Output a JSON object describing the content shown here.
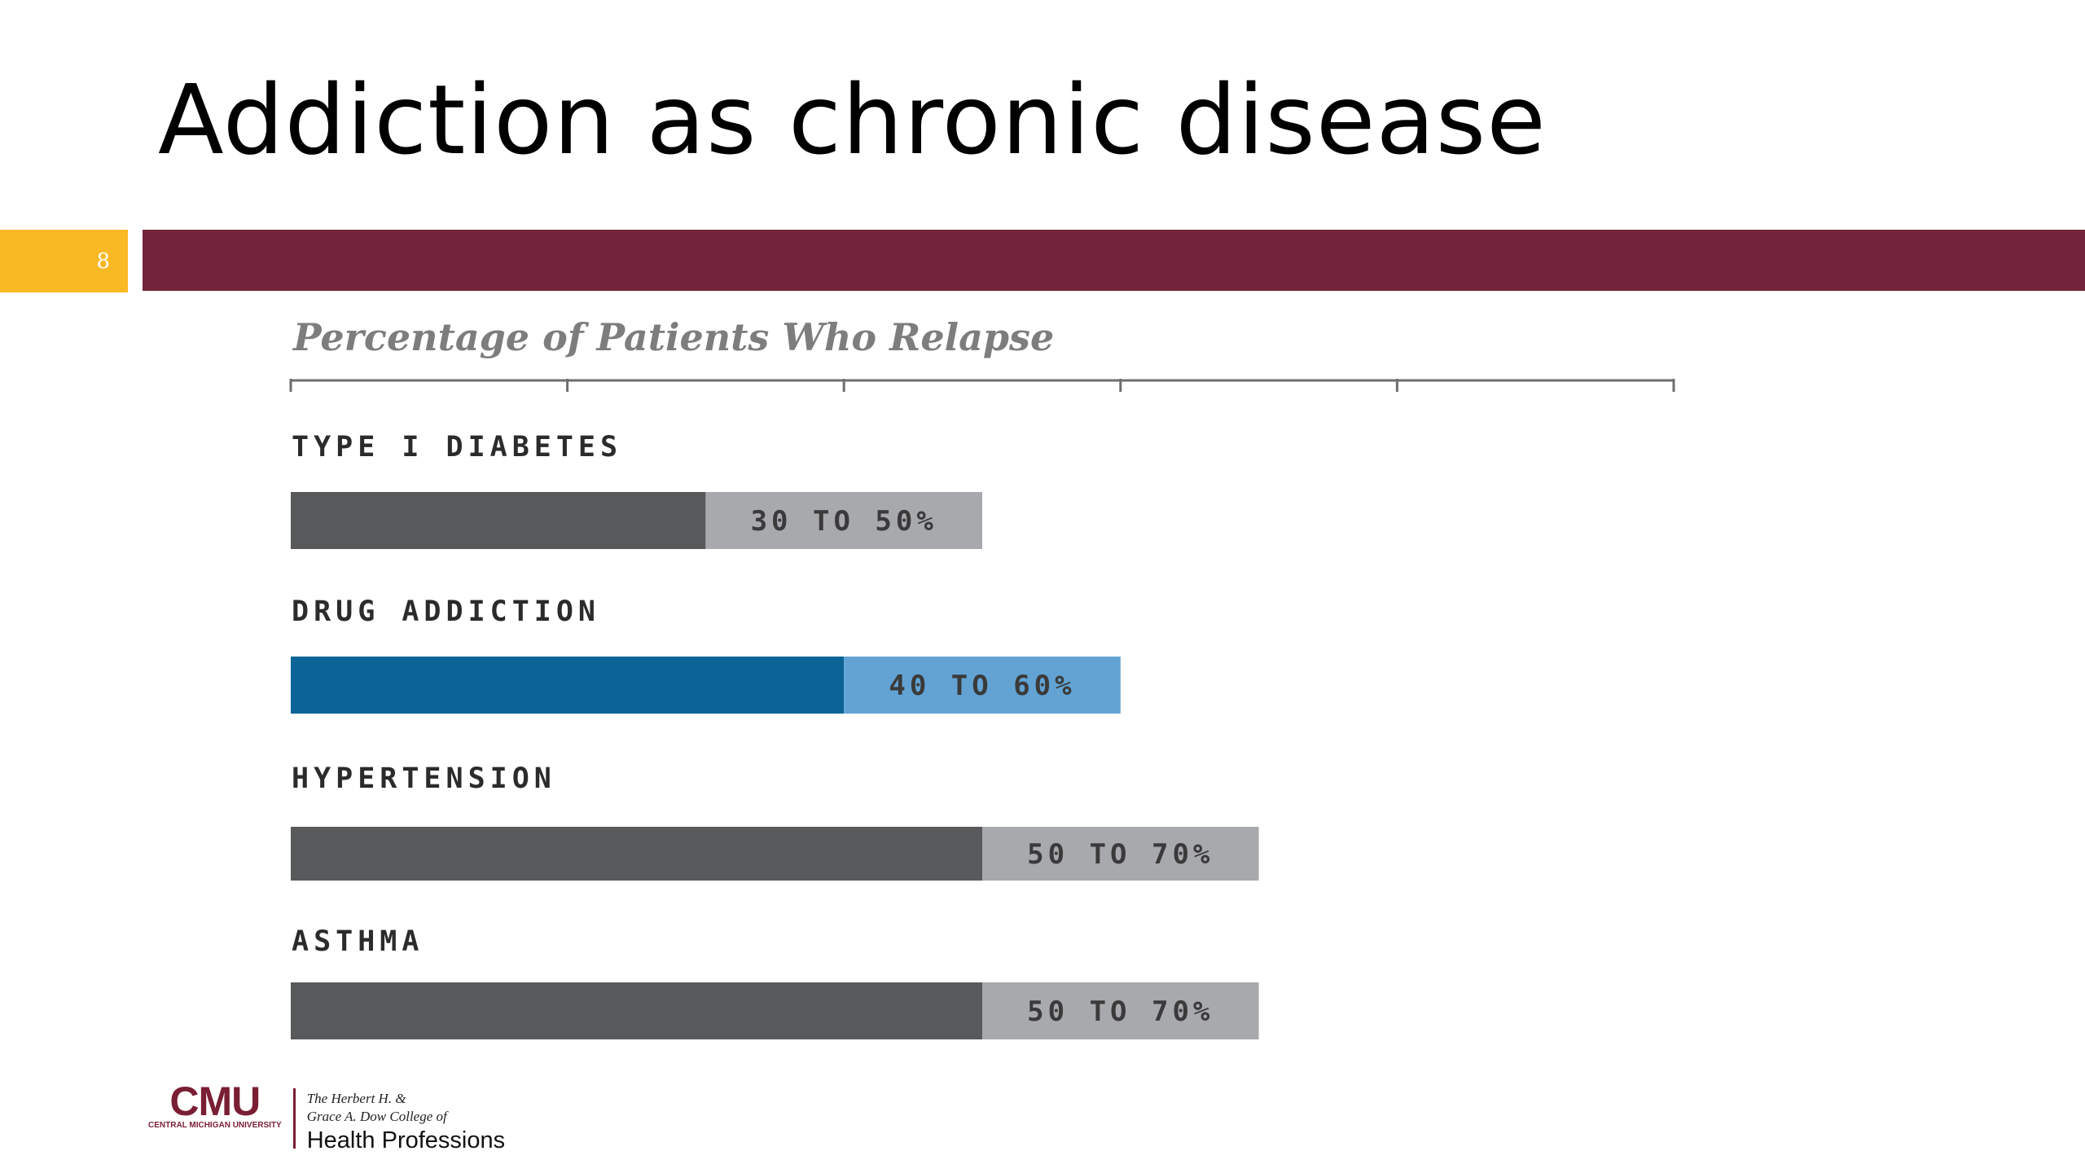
{
  "slide": {
    "title": "Addiction as chronic disease",
    "page_number": "8"
  },
  "colors": {
    "banner": "#74243a",
    "page_tab": "#f9b925",
    "bar_dark": "#58595b",
    "bar_light": "#a7a9ac",
    "addiction_dark": "#0c6496",
    "addiction_light": "#62a3d4"
  },
  "chart_data": {
    "type": "bar",
    "orientation": "horizontal",
    "title": "Percentage of Patients Who Relapse",
    "xlim": [
      0,
      100
    ],
    "grid": false,
    "categories": [
      "TYPE I DIABETES",
      "DRUG ADDICTION",
      "HYPERTENSION",
      "ASTHMA"
    ],
    "series": [
      {
        "low": 30,
        "high": 50,
        "label": "30 TO 50%"
      },
      {
        "low": 40,
        "high": 60,
        "label": "40 TO 60%"
      },
      {
        "low": 50,
        "high": 70,
        "label": "50 TO 70%"
      },
      {
        "low": 50,
        "high": 70,
        "label": "50 TO 70%"
      }
    ],
    "highlight": "DRUG ADDICTION"
  },
  "logo": {
    "brand": "CMU",
    "brand_sub": "CENTRAL MICHIGAN UNIVERSITY",
    "college_line1": "The Herbert H. &",
    "college_line2": "Grace A. Dow College of",
    "college_line3": "Health Professions"
  }
}
